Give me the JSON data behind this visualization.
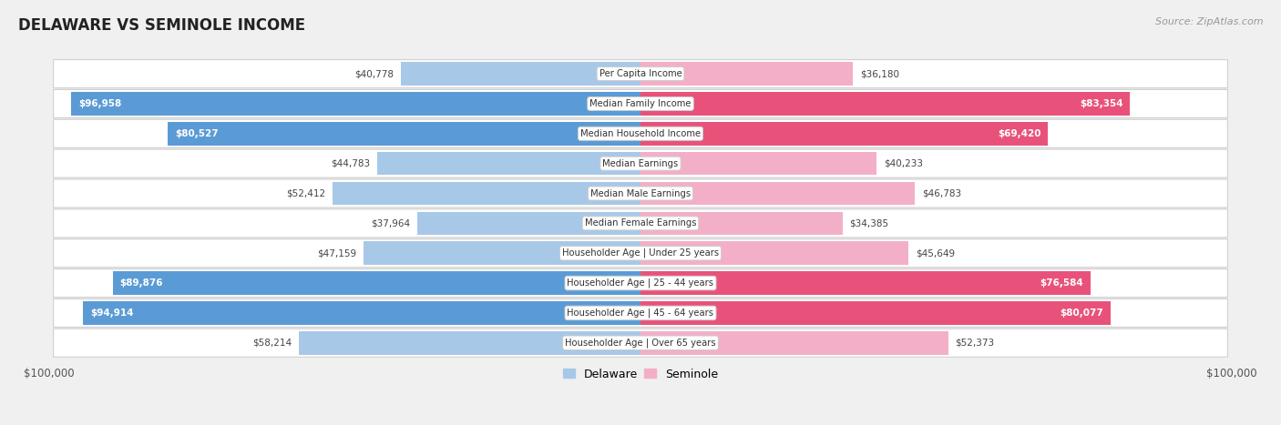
{
  "title": "DELAWARE VS SEMINOLE INCOME",
  "source": "Source: ZipAtlas.com",
  "categories": [
    "Per Capita Income",
    "Median Family Income",
    "Median Household Income",
    "Median Earnings",
    "Median Male Earnings",
    "Median Female Earnings",
    "Householder Age | Under 25 years",
    "Householder Age | 25 - 44 years",
    "Householder Age | 45 - 64 years",
    "Householder Age | Over 65 years"
  ],
  "delaware_values": [
    40778,
    96958,
    80527,
    44783,
    52412,
    37964,
    47159,
    89876,
    94914,
    58214
  ],
  "seminole_values": [
    36180,
    83354,
    69420,
    40233,
    46783,
    34385,
    45649,
    76584,
    80077,
    52373
  ],
  "delaware_labels": [
    "$40,778",
    "$96,958",
    "$80,527",
    "$44,783",
    "$52,412",
    "$37,964",
    "$47,159",
    "$89,876",
    "$94,914",
    "$58,214"
  ],
  "seminole_labels": [
    "$36,180",
    "$83,354",
    "$69,420",
    "$40,233",
    "$46,783",
    "$34,385",
    "$45,649",
    "$76,584",
    "$80,077",
    "$52,373"
  ],
  "delaware_color_light": "#a8c8e8",
  "delaware_color_dark": "#5b9bd5",
  "seminole_color_light": "#f4afc8",
  "seminole_color_dark": "#e8527a",
  "max_value": 100000,
  "background_color": "#f0f0f0",
  "legend_delaware": "Delaware",
  "legend_seminole": "Seminole",
  "xlabel_left": "$100,000",
  "xlabel_right": "$100,000",
  "dark_indices": [
    1,
    2,
    7,
    8
  ]
}
